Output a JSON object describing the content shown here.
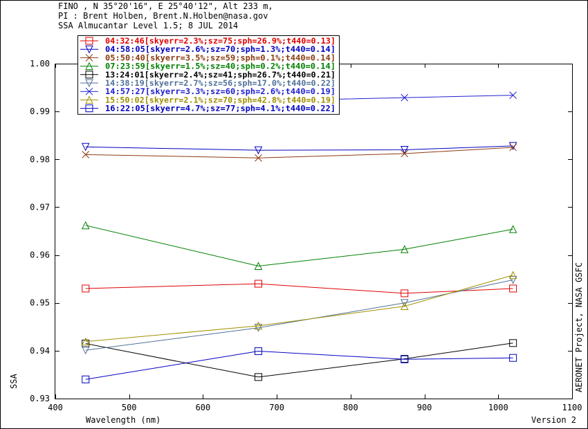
{
  "header": {
    "line1": "FINO , N 35°20'16\", E 25°40'12\", Alt 233 m,",
    "line2": "PI : Brent Holben, Brent.N.Holben@nasa.gov",
    "line3": "SSA Almucantar Level 1.5; 8 JUL 2014"
  },
  "footer": {
    "credit": "AERONET Project, NASA GSFC",
    "version": "Version 2"
  },
  "chart_data": {
    "type": "line",
    "xlabel": "Wavelength (nm)",
    "ylabel": "SSA",
    "xlim": [
      400,
      1100
    ],
    "ylim": [
      0.93,
      1.0
    ],
    "xticks": [
      400,
      500,
      600,
      700,
      800,
      900,
      1000,
      1100
    ],
    "yticks": [
      0.93,
      0.94,
      0.95,
      0.96,
      0.97,
      0.98,
      0.99,
      1.0
    ],
    "legend_position": "top-left",
    "grid": false,
    "x": [
      441,
      675,
      873,
      1020
    ],
    "series": [
      {
        "name": "04:32:46[skyerr=2.3%;sz=75;sph=26.9%;t440=0.13]",
        "color": "#e00000",
        "marker": "square",
        "values": [
          0.953,
          0.954,
          0.952,
          0.953
        ]
      },
      {
        "name": "04:58:05[skyerr=2.6%;sz=70;sph=1.3%;t440=0.14]",
        "color": "#0000c0",
        "marker": "triangle-down",
        "values": [
          0.9826,
          0.9819,
          0.982,
          0.9828
        ]
      },
      {
        "name": "05:50:40[skyerr=3.5%;sz=59;sph=0.1%;t440=0.14]",
        "color": "#8b3a0f",
        "marker": "x",
        "values": [
          0.981,
          0.9803,
          0.9812,
          0.9825
        ]
      },
      {
        "name": "07:23:59[skyerr=1.5%;sz=40;sph=0.2%;t440=0.14]",
        "color": "#008000",
        "marker": "triangle-up",
        "values": [
          0.9662,
          0.9577,
          0.9612,
          0.9654
        ]
      },
      {
        "name": "13:24:01[skyerr=2.4%;sz=41;sph=26.7%;t440=0.21]",
        "color": "#000000",
        "marker": "square",
        "values": [
          0.9415,
          0.9345,
          0.9383,
          0.9416
        ]
      },
      {
        "name": "14:38:19[skyerr=2.7%;sz=56;sph=17.0%;t440=0.22]",
        "color": "#50709a",
        "marker": "triangle-down",
        "values": [
          0.9401,
          0.9448,
          0.95,
          0.9548
        ]
      },
      {
        "name": "14:57:27[skyerr=3.3%;sz=60;sph=2.6%;t440=0.19]",
        "color": "#2020d0",
        "marker": "x",
        "values": [
          0.9915,
          0.9922,
          0.9929,
          0.9934
        ]
      },
      {
        "name": "15:50:02[skyerr=2.1%;sz=70;sph=42.8%;t440=0.19]",
        "color": "#a09000",
        "marker": "triangle-up",
        "values": [
          0.9419,
          0.9452,
          0.9493,
          0.9558
        ]
      },
      {
        "name": "16:22:05[skyerr=4.7%;sz=77;sph=4.1%;t440=0.22]",
        "color": "#0000c0",
        "marker": "square",
        "values": [
          0.934,
          0.9399,
          0.9382,
          0.9385
        ]
      }
    ]
  }
}
